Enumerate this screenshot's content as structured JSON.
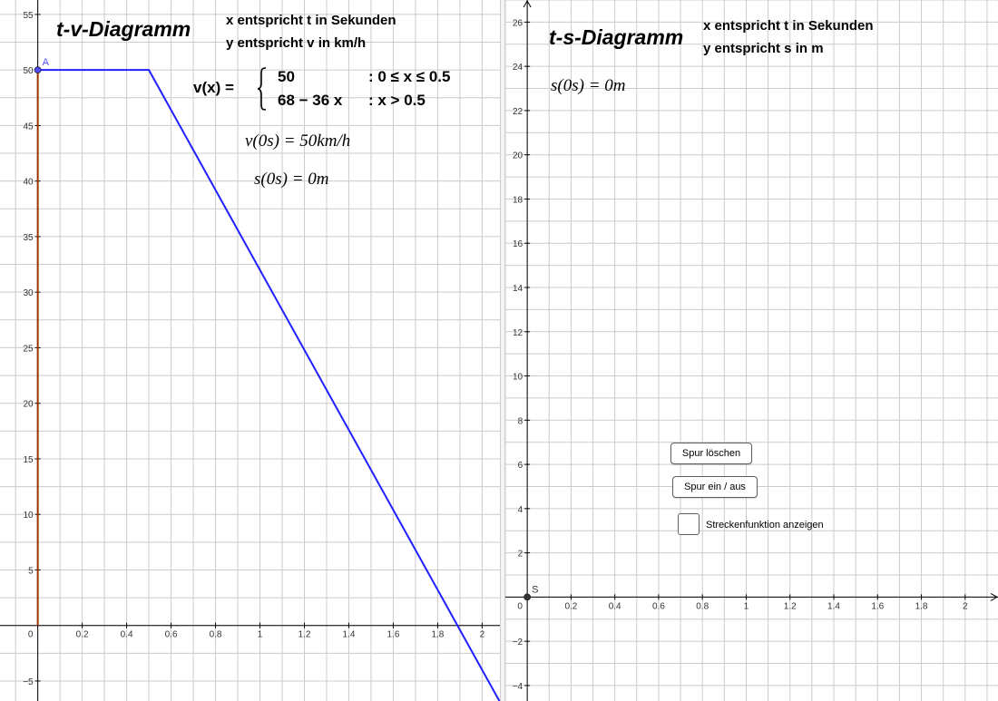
{
  "left": {
    "title": "t-v-Diagramm",
    "desc_line1": "x entspricht t in Sekunden",
    "desc_line2": "y entspricht   v in km/h",
    "formula_lhs": "v(x)  =",
    "case1_expr": "50",
    "case1_cond": ": 0 ≤ x ≤ 0.5",
    "case2_expr": "68 − 36 x",
    "case2_cond": ": x > 0.5",
    "v0_text": "v(0s) = 50km/h",
    "s0_text": "s(0s) = 0m",
    "point_label": "A"
  },
  "right": {
    "title": "t-s-Diagramm",
    "desc_line1": "x entspricht t in Sekunden",
    "desc_line2": "y entspricht s in m",
    "s0_text": "s(0s) = 0m",
    "point_label": "S",
    "btn_clear": "Spur löschen",
    "btn_toggle": "Spur ein / aus",
    "checkbox_label": "Streckenfunktion anzeigen"
  },
  "colors": {
    "function_line": "#2020ff",
    "segment_line": "#993300",
    "point_a": "#4d4dff",
    "point_s": "#333333",
    "grid": "#cccccc"
  },
  "chart_data": [
    {
      "type": "line",
      "title": "t-v-Diagramm",
      "xlabel": "",
      "ylabel": "",
      "xlim": [
        -0.17,
        2.08
      ],
      "ylim": [
        -6.8,
        56.3
      ],
      "x_ticks": [
        "0",
        "0.2",
        "0.4",
        "0.6",
        "0.8",
        "1",
        "1.2",
        "1.4",
        "1.6",
        "1.8",
        "2"
      ],
      "y_ticks": [
        "−5",
        "5",
        "10",
        "15",
        "20",
        "25",
        "30",
        "35",
        "40",
        "45",
        "50",
        "55"
      ],
      "grid": true,
      "series": [
        {
          "x": [
            0,
            0.5,
            2.08
          ],
          "y": [
            50,
            50,
            -6.88
          ]
        }
      ],
      "segments": [
        {
          "x": [
            0,
            0
          ],
          "y": [
            0,
            50
          ]
        }
      ],
      "points": [
        {
          "label": "A",
          "x": 0,
          "y": 50
        }
      ]
    },
    {
      "type": "line",
      "title": "t-s-Diagramm",
      "xlabel": "",
      "ylabel": "",
      "xlim": [
        -0.1,
        2.15
      ],
      "ylim": [
        -4.7,
        27.0
      ],
      "x_ticks": [
        "0",
        "0.2",
        "0.4",
        "0.6",
        "0.8",
        "1",
        "1.2",
        "1.4",
        "1.6",
        "1.8",
        "2"
      ],
      "y_ticks": [
        "−4",
        "−2",
        "2",
        "4",
        "6",
        "8",
        "10",
        "12",
        "14",
        "16",
        "18",
        "20",
        "22",
        "24",
        "26"
      ],
      "grid": true,
      "series": [],
      "points": [
        {
          "label": "S",
          "x": 0,
          "y": 0
        }
      ]
    }
  ]
}
